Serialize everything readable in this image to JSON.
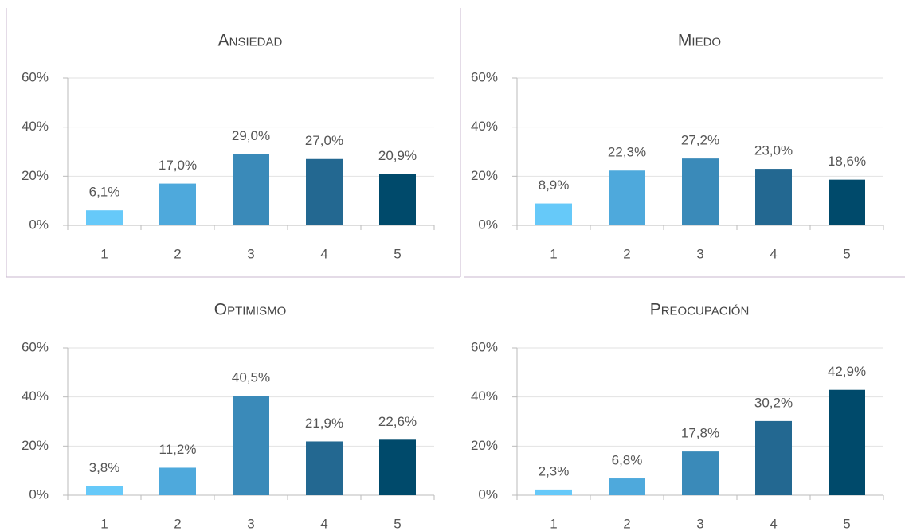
{
  "chart_data": [
    {
      "type": "bar",
      "title": "Ansiedad",
      "categories": [
        "1",
        "2",
        "3",
        "4",
        "5"
      ],
      "values": [
        6.1,
        17.0,
        29.0,
        27.0,
        20.9
      ],
      "value_labels": [
        "6,1%",
        "17,0%",
        "29,0%",
        "27,0%",
        "20,9%"
      ],
      "colors": [
        "#66c9f9",
        "#4ea9dc",
        "#3a8ab9",
        "#236891",
        "#004a6b"
      ],
      "ylim": [
        0,
        60
      ],
      "yticks": [
        {
          "value": 0,
          "label": "0%"
        },
        {
          "value": 20,
          "label": "20%"
        },
        {
          "value": 40,
          "label": "40%"
        },
        {
          "value": 60,
          "label": "60%"
        }
      ],
      "grid": true
    },
    {
      "type": "bar",
      "title": "Miedo",
      "categories": [
        "1",
        "2",
        "3",
        "4",
        "5"
      ],
      "values": [
        8.9,
        22.3,
        27.2,
        23.0,
        18.6
      ],
      "value_labels": [
        "8,9%",
        "22,3%",
        "27,2%",
        "23,0%",
        "18,6%"
      ],
      "colors": [
        "#66c9f9",
        "#4ea9dc",
        "#3a8ab9",
        "#236891",
        "#004a6b"
      ],
      "ylim": [
        0,
        60
      ],
      "yticks": [
        {
          "value": 0,
          "label": "0%"
        },
        {
          "value": 20,
          "label": "20%"
        },
        {
          "value": 40,
          "label": "40%"
        },
        {
          "value": 60,
          "label": "60%"
        }
      ],
      "grid": true
    },
    {
      "type": "bar",
      "title": "Optimismo",
      "categories": [
        "1",
        "2",
        "3",
        "4",
        "5"
      ],
      "values": [
        3.8,
        11.2,
        40.5,
        21.9,
        22.6
      ],
      "value_labels": [
        "3,8%",
        "11,2%",
        "40,5%",
        "21,9%",
        "22,6%"
      ],
      "colors": [
        "#66c9f9",
        "#4ea9dc",
        "#3a8ab9",
        "#236891",
        "#004a6b"
      ],
      "ylim": [
        0,
        60
      ],
      "yticks": [
        {
          "value": 0,
          "label": "0%"
        },
        {
          "value": 20,
          "label": "20%"
        },
        {
          "value": 40,
          "label": "40%"
        },
        {
          "value": 60,
          "label": "60%"
        }
      ],
      "grid": true
    },
    {
      "type": "bar",
      "title": "Preocupación",
      "categories": [
        "1",
        "2",
        "3",
        "4",
        "5"
      ],
      "values": [
        2.3,
        6.8,
        17.8,
        30.2,
        42.9
      ],
      "value_labels": [
        "2,3%",
        "6,8%",
        "17,8%",
        "30,2%",
        "42,9%"
      ],
      "colors": [
        "#66c9f9",
        "#4ea9dc",
        "#3a8ab9",
        "#236891",
        "#004a6b"
      ],
      "ylim": [
        0,
        60
      ],
      "yticks": [
        {
          "value": 0,
          "label": "0%"
        },
        {
          "value": 20,
          "label": "20%"
        },
        {
          "value": 40,
          "label": "40%"
        },
        {
          "value": 60,
          "label": "60%"
        }
      ],
      "grid": true
    }
  ]
}
